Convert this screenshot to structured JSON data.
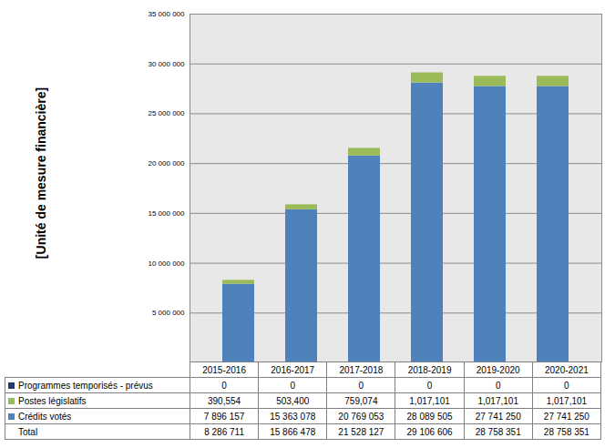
{
  "chart_data": {
    "type": "bar",
    "stacked": true,
    "grid": true,
    "y_label": "[Unité de mesure financière]",
    "categories": [
      "2015-2016",
      "2016-2017",
      "2017-2018",
      "2018-2019",
      "2019-2020",
      "2020-2021"
    ],
    "ylim": [
      0,
      35000000
    ],
    "yticks": [
      {
        "value": 5000000,
        "label": "5 000 000"
      },
      {
        "value": 10000000,
        "label": "10 000 000"
      },
      {
        "value": 15000000,
        "label": "15 000 000"
      },
      {
        "value": 20000000,
        "label": "20 000 000"
      },
      {
        "value": 25000000,
        "label": "25 000 000"
      },
      {
        "value": 30000000,
        "label": "30 000 000"
      },
      {
        "value": 35000000,
        "label": "35 000 000"
      }
    ],
    "series": [
      {
        "name": "Programmes temporisés - prévus",
        "color": "#1f3d6e",
        "values": [
          0,
          0,
          0,
          0,
          0,
          0
        ],
        "value_labels": [
          "0",
          "0",
          "0",
          "0",
          "0",
          "0"
        ]
      },
      {
        "name": "Postes législatifs",
        "color": "#9bbb59",
        "values": [
          390554,
          503400,
          759074,
          1017101,
          1017101,
          1017101
        ],
        "value_labels": [
          "390,554",
          "503,400",
          "759,074",
          "1,017,101",
          "1,017,101",
          "1,017,101"
        ]
      },
      {
        "name": "Crédits votés",
        "color": "#4f81bd",
        "values": [
          7896157,
          15363078,
          20769053,
          28089505,
          27741250,
          27741250
        ],
        "value_labels": [
          "7 896 157",
          "15 363 078",
          "20 769 053",
          "28 089 505",
          "27 741 250",
          "27 741 250"
        ]
      }
    ],
    "total": {
      "name": "Total",
      "values": [
        8286711,
        15866478,
        21528127,
        29106606,
        28758351,
        28758351
      ],
      "value_labels": [
        "8 286 711",
        "15 866 478",
        "21 528 127",
        "29 106 606",
        "28 758 351",
        "28 758 351"
      ]
    }
  }
}
